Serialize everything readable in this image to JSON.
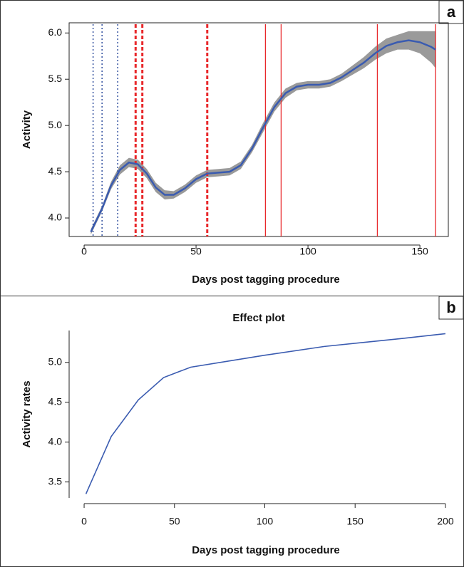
{
  "chart_data": [
    {
      "type": "line",
      "panel_label": "a",
      "x_label": "Days post tagging procedure",
      "y_label": "Activity",
      "x": [
        3,
        8,
        12,
        16,
        20,
        24,
        28,
        32,
        36,
        40,
        45,
        50,
        55,
        60,
        65,
        70,
        75,
        80,
        85,
        90,
        95,
        100,
        105,
        110,
        115,
        120,
        125,
        130,
        135,
        140,
        145,
        150,
        155,
        157
      ],
      "series": [
        {
          "color": "#3a5bb0",
          "band_color": "#9a9a9a",
          "values": [
            3.85,
            4.1,
            4.35,
            4.52,
            4.6,
            4.58,
            4.48,
            4.33,
            4.25,
            4.25,
            4.32,
            4.42,
            4.48,
            4.49,
            4.5,
            4.57,
            4.75,
            4.98,
            5.2,
            5.35,
            5.42,
            5.44,
            5.44,
            5.46,
            5.52,
            5.6,
            5.68,
            5.78,
            5.86,
            5.9,
            5.92,
            5.9,
            5.85,
            5.82
          ],
          "lower": [
            3.82,
            4.07,
            4.31,
            4.47,
            4.55,
            4.53,
            4.43,
            4.28,
            4.2,
            4.21,
            4.28,
            4.38,
            4.44,
            4.45,
            4.46,
            4.53,
            4.71,
            4.93,
            5.15,
            5.3,
            5.38,
            5.4,
            5.4,
            5.42,
            5.48,
            5.55,
            5.62,
            5.71,
            5.78,
            5.82,
            5.82,
            5.78,
            5.68,
            5.62
          ],
          "upper": [
            3.88,
            4.13,
            4.39,
            4.57,
            4.65,
            4.63,
            4.53,
            4.38,
            4.3,
            4.29,
            4.36,
            4.46,
            4.52,
            4.53,
            4.54,
            4.61,
            4.79,
            5.03,
            5.25,
            5.4,
            5.46,
            5.48,
            5.48,
            5.5,
            5.56,
            5.65,
            5.74,
            5.85,
            5.94,
            5.98,
            6.02,
            6.02,
            6.02,
            6.02
          ]
        }
      ],
      "vlines": [
        {
          "color": "#2f4e9e",
          "style": "dotted",
          "values": [
            4,
            8,
            15
          ]
        },
        {
          "color": "#e8272a",
          "style": "dashed",
          "values": [
            23,
            26,
            55
          ]
        },
        {
          "color": "#e8272a",
          "style": "solid",
          "values": [
            81,
            88,
            131,
            157
          ]
        }
      ],
      "xlim": [
        -6.7,
        162.7
      ],
      "ylim": [
        3.8,
        6.11
      ],
      "xticks": [
        0,
        50,
        100,
        150
      ],
      "yticks": [
        {
          "value": 4,
          "label": "4.0"
        },
        4.5,
        {
          "value": 5,
          "label": "5.0"
        },
        5.5,
        {
          "value": 6,
          "label": "6.0"
        }
      ],
      "box": true
    },
    {
      "type": "line",
      "panel_label": "b",
      "title": "Effect plot",
      "x_label": "Days post tagging procedure",
      "y_label": "Activity rates",
      "x": [
        1,
        15,
        30,
        44,
        59,
        100,
        133,
        176,
        200
      ],
      "series": [
        {
          "color": "#3a5bb0",
          "values": [
            3.35,
            4.07,
            4.53,
            4.81,
            4.94,
            5.09,
            5.2,
            5.3,
            5.36
          ]
        }
      ],
      "xlim": [
        -8.3,
        201.6
      ],
      "ylim": [
        3.3,
        5.4
      ],
      "xticks": [
        0,
        50,
        100,
        150,
        200
      ],
      "yticks": [
        3.5,
        {
          "value": 4,
          "label": "4.0"
        },
        4.5,
        {
          "value": 5,
          "label": "5.0"
        }
      ],
      "box": false
    }
  ]
}
